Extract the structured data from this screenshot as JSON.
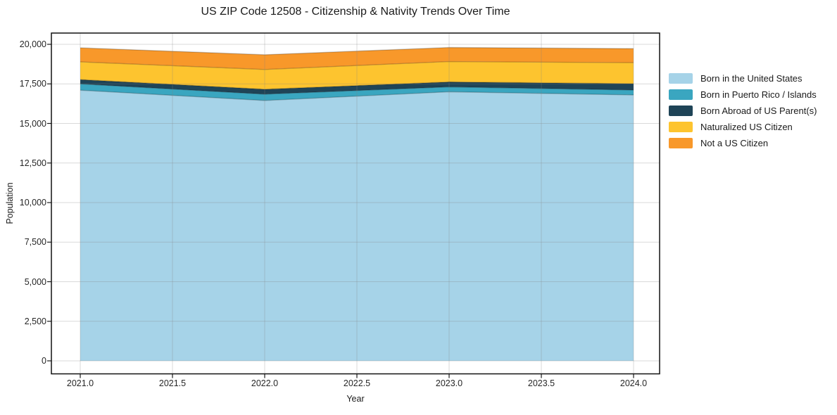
{
  "title": "US ZIP Code 12508 - Citizenship & Nativity Trends Over Time",
  "chart_data": {
    "type": "area",
    "stacked": true,
    "title": "US ZIP Code 12508 - Citizenship & Nativity Trends Over Time",
    "xlabel": "Year",
    "ylabel": "Population",
    "x": [
      2021,
      2022,
      2023,
      2024
    ],
    "series": [
      {
        "name": "Born in the United States",
        "color": "#a6d3e8",
        "values": [
          17100,
          16450,
          17000,
          16800
        ]
      },
      {
        "name": "Born in Puerto Rico / Islands",
        "color": "#3aa6c0",
        "values": [
          400,
          400,
          310,
          310
        ]
      },
      {
        "name": "Born Abroad of US Parent(s)",
        "color": "#1f4457",
        "values": [
          270,
          310,
          310,
          400
        ]
      },
      {
        "name": "Naturalized US Citizen",
        "color": "#fdc42f",
        "values": [
          1120,
          1250,
          1290,
          1330
        ]
      },
      {
        "name": "Not a US Citizen",
        "color": "#f8982a",
        "values": [
          890,
          930,
          890,
          890
        ]
      }
    ],
    "stacked_totals": [
      19780,
      19340,
      19800,
      19730
    ],
    "xlim": [
      2021,
      2024
    ],
    "ylim": [
      0,
      20000
    ],
    "xticks": [
      2021.0,
      2021.5,
      2022.0,
      2022.5,
      2023.0,
      2023.5,
      2024.0
    ],
    "xtick_labels": [
      "2021.0",
      "2021.5",
      "2022.0",
      "2022.5",
      "2023.0",
      "2023.5",
      "2024.0"
    ],
    "yticks": [
      0,
      2500,
      5000,
      7500,
      10000,
      12500,
      15000,
      17500,
      20000
    ],
    "ytick_labels": [
      "0",
      "2,500",
      "5,000",
      "7,500",
      "10,000",
      "12,500",
      "15,000",
      "17,500",
      "20,000"
    ],
    "grid": true,
    "legend_position": "right of plot, frameless"
  }
}
